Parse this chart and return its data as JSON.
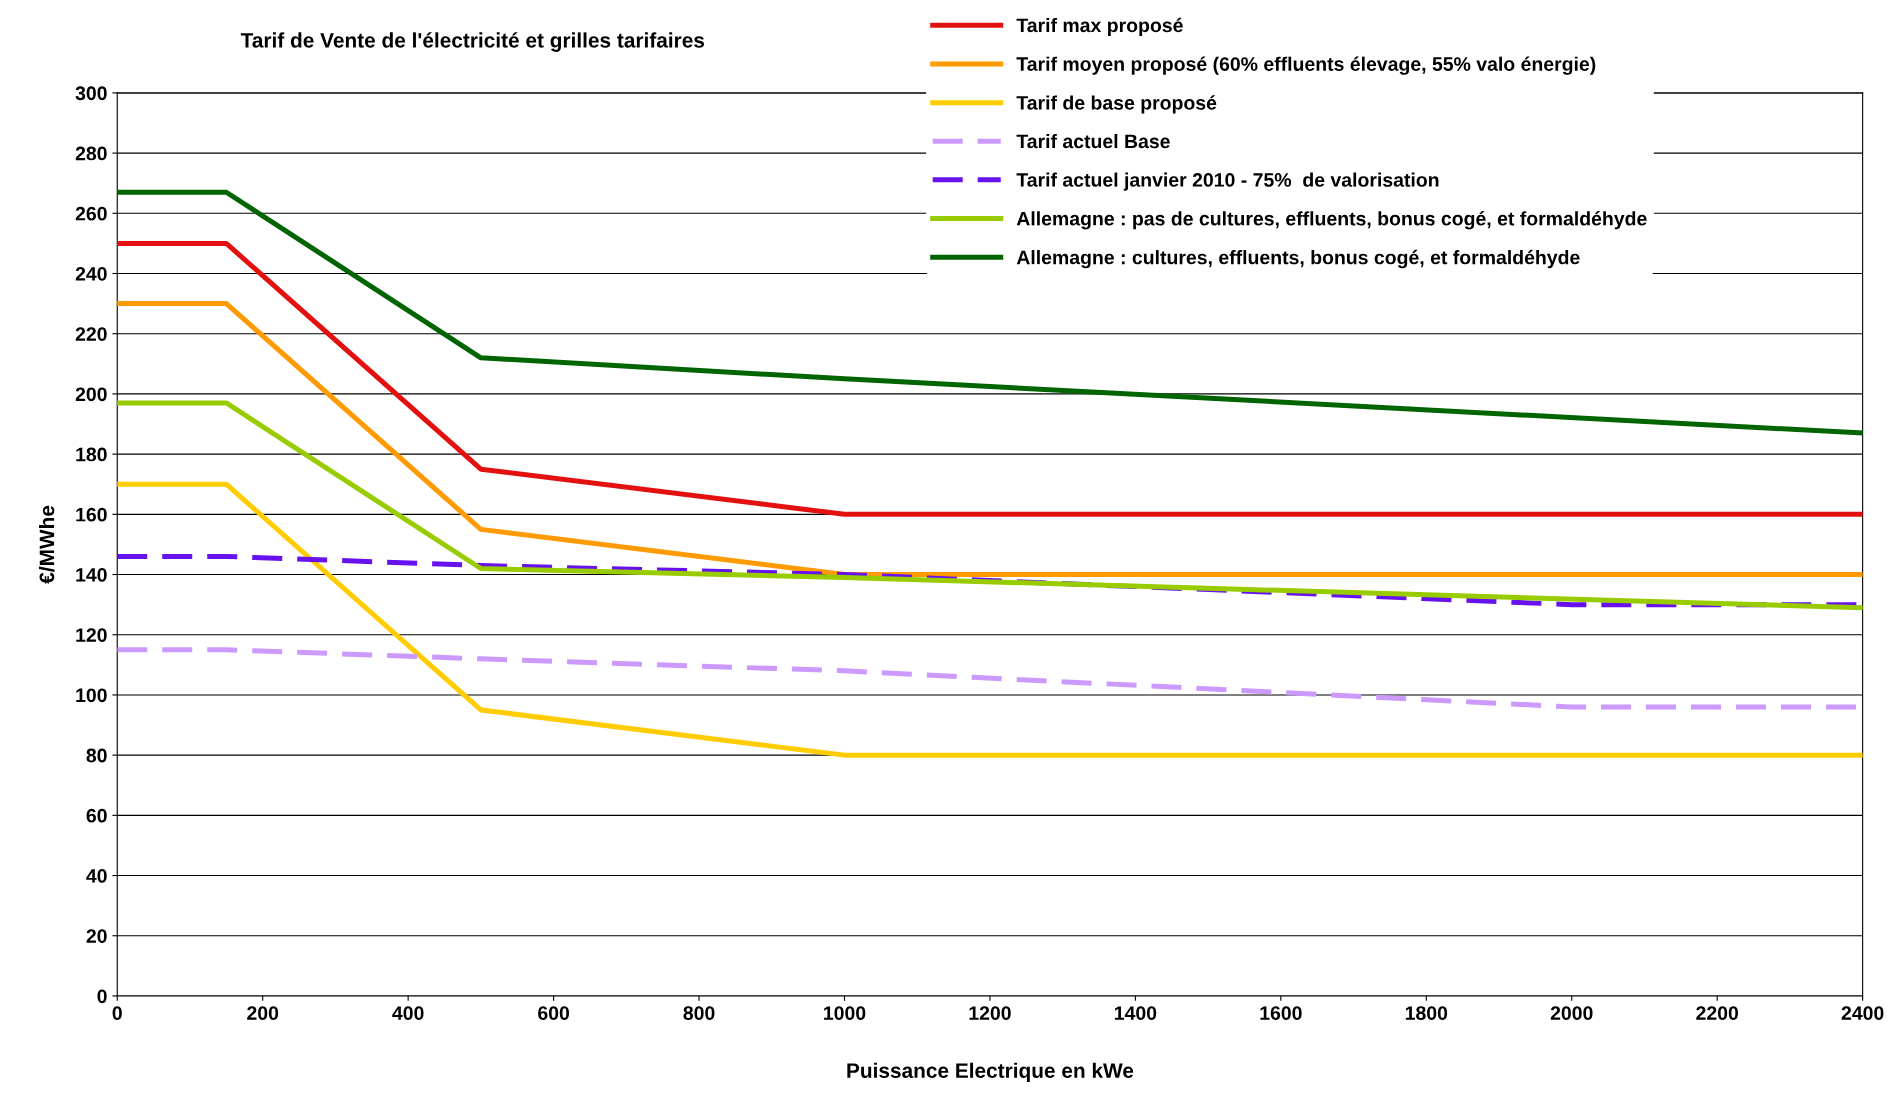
{
  "chart_data": {
    "type": "line",
    "title": "Tarif de Vente de l'électricité et grilles tarifaires",
    "xlabel": "Puissance Electrique en kWe",
    "ylabel": "€/MWhe",
    "xlim": [
      0,
      2400
    ],
    "xticks": [
      0,
      200,
      400,
      600,
      800,
      1000,
      1200,
      1400,
      1600,
      1800,
      2000,
      2200,
      2400
    ],
    "ylim": [
      0,
      300
    ],
    "yticks": [
      0,
      20,
      40,
      60,
      80,
      100,
      120,
      140,
      160,
      180,
      200,
      220,
      240,
      260,
      280,
      300
    ],
    "grid": "y",
    "legend": "top right",
    "marker": "none",
    "series": [
      {
        "name": "Tarif max proposé",
        "color": "#e31010",
        "line_style": "solid",
        "x": [
          0,
          150,
          500,
          1000,
          2400
        ],
        "values": [
          250,
          250,
          175,
          160,
          160
        ]
      },
      {
        "name": "Tarif moyen proposé (60% effluents élevage, 55% valo énergie)",
        "color": "#ff9a00",
        "line_style": "solid",
        "x": [
          0,
          150,
          500,
          1000,
          2400
        ],
        "values": [
          230,
          230,
          155,
          140,
          140
        ]
      },
      {
        "name": "Tarif de base proposé",
        "color": "#ffcc00",
        "line_style": "solid",
        "x": [
          0,
          150,
          500,
          1000,
          2400
        ],
        "values": [
          170,
          170,
          95,
          80,
          80
        ]
      },
      {
        "name": "Tarif actuel Base",
        "color": "#cc99ff",
        "line_style": "dashed",
        "x": [
          0,
          150,
          500,
          1000,
          2000,
          2400
        ],
        "values": [
          115,
          115,
          112,
          108,
          96,
          96
        ]
      },
      {
        "name": "Tarif actuel janvier 2010 - 75%  de valorisation",
        "color": "#6611ee",
        "line_style": "dashed",
        "x": [
          0,
          150,
          500,
          1000,
          2000,
          2400
        ],
        "values": [
          146,
          146,
          143,
          140,
          130,
          130
        ]
      },
      {
        "name": "Allemagne : pas de cultures, effluents, bonus cogé, et formaldéhyde",
        "color": "#99cc00",
        "line_style": "solid",
        "x": [
          0,
          150,
          500,
          1000,
          2400
        ],
        "values": [
          197,
          197,
          142,
          139,
          129
        ]
      },
      {
        "name": "Allemagne : cultures, effluents, bonus cogé, et formaldéhyde",
        "color": "#006400",
        "line_style": "solid",
        "x": [
          0,
          150,
          500,
          1000,
          2400
        ],
        "values": [
          267,
          267,
          212,
          205,
          187
        ]
      }
    ]
  }
}
